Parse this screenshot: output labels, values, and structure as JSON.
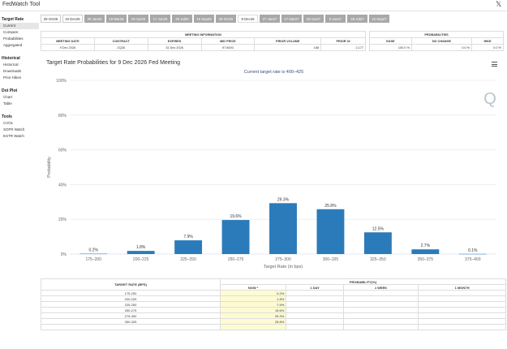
{
  "app": {
    "title": "FedWatch Tool",
    "x_icon": "𝕏"
  },
  "sidebar": {
    "sections": [
      {
        "title": "Target Rate",
        "items": [
          {
            "label": "Current",
            "active": true
          },
          {
            "label": "Compare",
            "active": false
          },
          {
            "label": "Probabilities",
            "active": false
          },
          {
            "label": "Aggregated",
            "active": false
          }
        ]
      },
      {
        "title": "Historical",
        "items": [
          {
            "label": "Historical",
            "active": false
          },
          {
            "label": "Downloads",
            "active": false
          },
          {
            "label": "Prior Hikes",
            "active": false
          }
        ]
      },
      {
        "title": "Dot Plot",
        "items": [
          {
            "label": "Chart",
            "active": false
          },
          {
            "label": "Table",
            "active": false
          }
        ]
      },
      {
        "title": "Tools",
        "items": [
          {
            "label": "CVOL",
            "active": false
          },
          {
            "label": "SOFR Watch",
            "active": false
          },
          {
            "label": "ESTR Watch",
            "active": false
          }
        ]
      }
    ]
  },
  "tabs": [
    {
      "label": "29 Oct25",
      "state": "plain"
    },
    {
      "label": "10 Dec25",
      "state": "plain"
    },
    {
      "label": "28 Jan26",
      "state": "grey"
    },
    {
      "label": "18 Mar26",
      "state": "grey"
    },
    {
      "label": "29 Apr26",
      "state": "grey"
    },
    {
      "label": "17 Jun26",
      "state": "grey"
    },
    {
      "label": "29 Jul26",
      "state": "grey"
    },
    {
      "label": "16 Sep26",
      "state": "grey"
    },
    {
      "label": "28 Oct26",
      "state": "grey"
    },
    {
      "label": "9 Dec26",
      "state": "sel"
    },
    {
      "label": "27 Jan27",
      "state": "grey"
    },
    {
      "label": "17 Mar27",
      "state": "grey"
    },
    {
      "label": "28 Apr27",
      "state": "grey"
    },
    {
      "label": "9 Jun27",
      "state": "grey"
    },
    {
      "label": "28 Jul27",
      "state": "grey"
    },
    {
      "label": "15 Sep27",
      "state": "grey"
    }
  ],
  "meeting_info": {
    "heading": "MEETING INFORMATION",
    "columns": [
      "MEETING DATE",
      "CONTRACT",
      "EXPIRES",
      "MID PRICE",
      "PRIOR VOLUME",
      "PRIOR OI"
    ],
    "values": [
      "9 Dec 2026",
      "ZQZ6",
      "31 Dec 2026",
      "97.8000",
      "168",
      "2,177"
    ]
  },
  "probabilities_head": {
    "heading": "PROBABILITIES",
    "columns": [
      "EASE",
      "NO CHANGE",
      "HIKE"
    ],
    "values": [
      "100.0 %",
      "0.0 %",
      "0.0 %"
    ]
  },
  "chart": {
    "title": "Target Rate Probabilities for 9 Dec 2026 Fed Meeting",
    "subtitle": "Current target rate is 400–425",
    "watermark": "Q"
  },
  "chart_data": {
    "type": "bar",
    "title": "Target Rate Probabilities for 9 Dec 2026 Fed Meeting",
    "subtitle": "Current target rate is 400–425",
    "xlabel": "Target Rate (in bps)",
    "ylabel": "Probability",
    "ylim": [
      0,
      100
    ],
    "yticks": [
      "0%",
      "20%",
      "40%",
      "60%",
      "80%",
      "100%"
    ],
    "categories": [
      "175–200",
      "200–225",
      "225–250",
      "250–275",
      "275–300",
      "300–325",
      "325–350",
      "350–375",
      "375–400"
    ],
    "values": [
      0.2,
      1.8,
      7.9,
      19.6,
      29.3,
      25.8,
      12.5,
      2.7,
      0.1
    ],
    "labels": [
      "0.2%",
      "1.8%",
      "7.9%",
      "19.6%",
      "29.3%",
      "25.8%",
      "12.5%",
      "2.7%",
      "0.1%"
    ],
    "bar_color": "#2b7bba",
    "grid": true,
    "legend": "none"
  },
  "prob_table": {
    "col_target": "TARGET RATE (BPS)",
    "col_prob": "PROBABILITY(%)",
    "sub_cols": [
      "NOW *",
      "1 DAY",
      "1 WEEK",
      "1 MONTH"
    ],
    "rows": [
      {
        "rate": "175-200",
        "now": "0.2%",
        "d1": "",
        "w1": "",
        "m1": ""
      },
      {
        "rate": "200-225",
        "now": "1.8%",
        "d1": "",
        "w1": "",
        "m1": ""
      },
      {
        "rate": "225-250",
        "now": "7.9%",
        "d1": "",
        "w1": "",
        "m1": ""
      },
      {
        "rate": "250-275",
        "now": "19.6%",
        "d1": "",
        "w1": "",
        "m1": ""
      },
      {
        "rate": "275-300",
        "now": "29.3%",
        "d1": "",
        "w1": "",
        "m1": ""
      },
      {
        "rate": "300-325",
        "now": "25.8%",
        "d1": "",
        "w1": "",
        "m1": ""
      },
      {
        "rate": "",
        "now": "",
        "d1": "",
        "w1": "",
        "m1": ""
      }
    ]
  }
}
